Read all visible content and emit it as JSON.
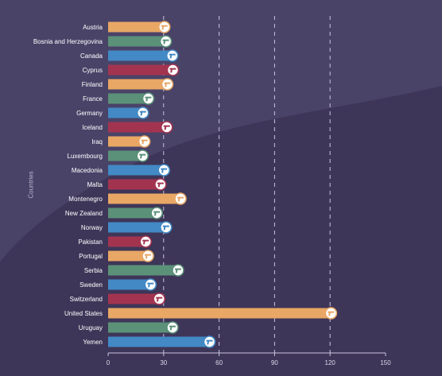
{
  "chart_data": {
    "type": "bar",
    "orientation": "horizontal",
    "title": "",
    "xlabel": "",
    "ylabel": "Countries",
    "xlim": [
      0,
      150
    ],
    "xticks": [
      0,
      30,
      60,
      90,
      120,
      150
    ],
    "grid": "vertical dashed",
    "categories": [
      "Austria",
      "Bosnia and Herzegovina",
      "Canada",
      "Cyprus",
      "Finland",
      "France",
      "Germany",
      "Iceland",
      "Iraq",
      "Luxembourg",
      "Macedonia",
      "Malta",
      "Montenegro",
      "New Zealand",
      "Norway",
      "Pakistan",
      "Portugal",
      "Serbia",
      "Sweden",
      "Switzerland",
      "United States",
      "Uruguay",
      "Yemen"
    ],
    "values": [
      30.4,
      31.2,
      34.7,
      35.0,
      32.0,
      21.7,
      18.8,
      31.7,
      19.6,
      18.6,
      30.2,
      28.3,
      39.1,
      26.3,
      31.3,
      20.3,
      21.5,
      37.8,
      22.9,
      27.6,
      120.5,
      34.8,
      54.8
    ],
    "colors": [
      "#e8a765",
      "#5b9178",
      "#4289c5",
      "#a3344f",
      "#e8a765",
      "#5b9178",
      "#4289c5",
      "#a3344f",
      "#e8a765",
      "#5b9178",
      "#4289c5",
      "#a3344f",
      "#e8a765",
      "#5b9178",
      "#4289c5",
      "#a3344f",
      "#e8a765",
      "#5b9178",
      "#4289c5",
      "#a3344f",
      "#e8a765",
      "#5b9178",
      "#4289c5"
    ],
    "marker_icon": "gun-icon"
  },
  "background": {
    "dark": "#3e3658",
    "light": "#4a4368"
  }
}
